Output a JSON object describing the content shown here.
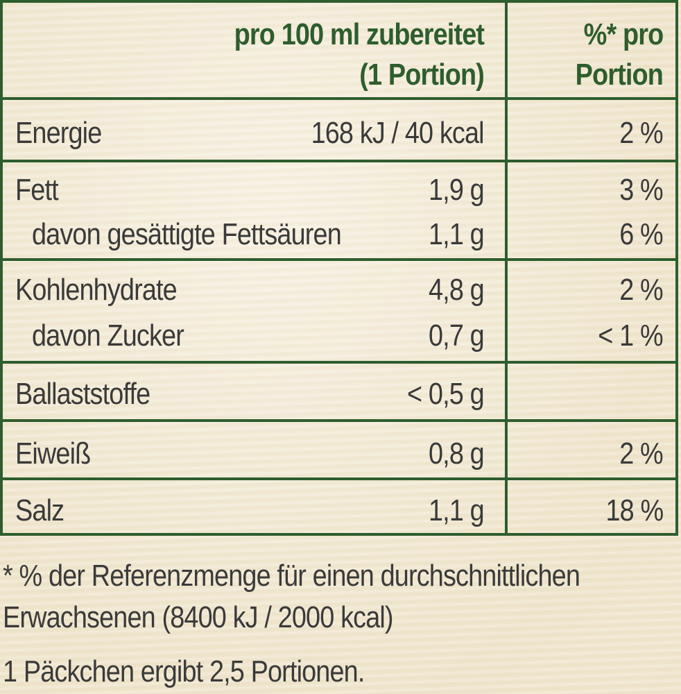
{
  "header": {
    "col2_line1": "pro 100 ml zubereitet",
    "col2_line2": "(1 Portion)",
    "col3_line1": "%* pro",
    "col3_line2": "Portion"
  },
  "rows": [
    {
      "label": "Energie",
      "value": "168 kJ / 40 kcal",
      "percent": "2 %"
    },
    {
      "label": "Fett",
      "value": "1,9 g",
      "percent": "3 %"
    },
    {
      "label": "davon gesättigte Fettsäuren",
      "value": "1,1 g",
      "percent": "6 %"
    },
    {
      "label": "Kohlenhydrate",
      "value": "4,8 g",
      "percent": "2 %"
    },
    {
      "label": "davon Zucker",
      "value": "0,7 g",
      "percent": "< 1 %"
    },
    {
      "label": "Ballaststoffe",
      "value": "< 0,5 g",
      "percent": ""
    },
    {
      "label": "Eiweiß",
      "value": "0,8 g",
      "percent": "2 %"
    },
    {
      "label": "Salz",
      "value": "1,1 g",
      "percent": "18 %"
    }
  ],
  "footnote": {
    "line1": "* %  der Referenzmenge für einen durchschnittlichen",
    "line2": "Erwachsenen (8400 kJ / 2000 kcal)",
    "line3": "1 Päckchen ergibt 2,5 Portionen."
  },
  "colors": {
    "border": "#2e5d2e",
    "text": "#3a3a3a",
    "background": "#f2ead6"
  }
}
